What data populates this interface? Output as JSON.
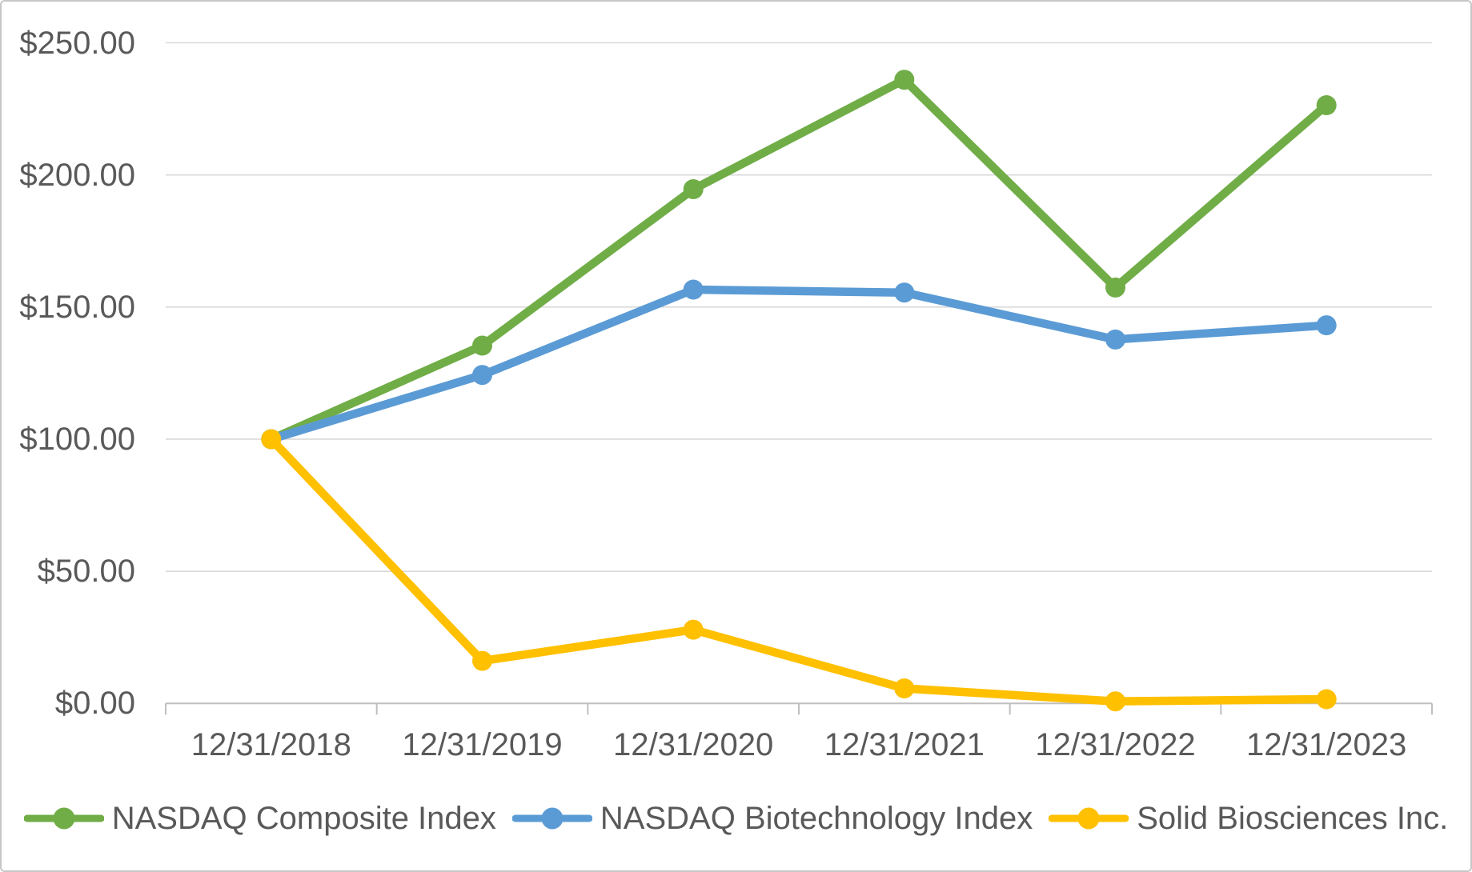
{
  "chart_data": {
    "type": "line",
    "x": [
      "12/31/2018",
      "12/31/2019",
      "12/31/2020",
      "12/31/2021",
      "12/31/2022",
      "12/31/2023"
    ],
    "series": [
      {
        "name": "NASDAQ Composite Index",
        "color": "#70AD47",
        "values": [
          100.0,
          135.4,
          194.6,
          236.0,
          157.4,
          226.4
        ]
      },
      {
        "name": "NASDAQ Biotechnology Index",
        "color": "#5B9BD5",
        "values": [
          100.0,
          124.3,
          156.6,
          155.5,
          137.7,
          143.1
        ]
      },
      {
        "name": "Solid Biosciences Inc.",
        "color": "#FFC000",
        "values": [
          100.0,
          16.1,
          27.9,
          5.7,
          0.8,
          1.6
        ]
      }
    ],
    "ylim": [
      0,
      250
    ],
    "ytick_step": 50,
    "ytick_labels": [
      "$0.00",
      "$50.00",
      "$100.00",
      "$150.00",
      "$200.00",
      "$250.00"
    ],
    "grid": true,
    "legend_position": "bottom"
  },
  "style_colors": {
    "gridline": "#D9D9D9",
    "axis_line": "#BFBFBF",
    "text": "#595959",
    "frame_border": "#C7C5C5",
    "background": "#FFFFFF"
  }
}
